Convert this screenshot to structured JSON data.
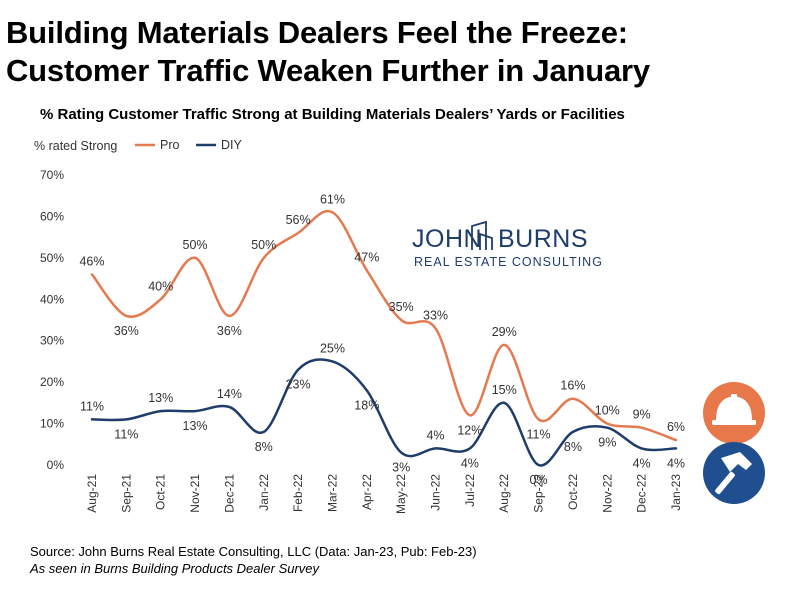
{
  "headline": {
    "line1": "Building Materials Dealers Feel the Freeze:",
    "line2": "Customer Traffic Weaken Further in January"
  },
  "brand": {
    "word1": "JOHN",
    "word2": "BURNS",
    "tagline": "REAL ESTATE CONSULTING"
  },
  "footer": {
    "source": "Source: John Burns Real Estate Consulting, LLC (Data: Jan-23, Pub: Feb-23)",
    "note": "As seen in Burns Building Products Dealer Survey"
  },
  "icons": {
    "pro": "hard-hat-icon",
    "diy": "hammer-icon"
  },
  "colors": {
    "pro": "#e5794f",
    "diy": "#1f3d6b",
    "pro_badge": "#e8784a",
    "diy_badge": "#1f4f8f"
  },
  "chart_data": {
    "type": "line",
    "title": "% Rating Customer Traffic Strong at Building Materials Dealers’ Yards or Facilities",
    "ylabel": "% rated Strong",
    "xlabel": "",
    "ylim": [
      0,
      70
    ],
    "yticks": [
      0,
      10,
      20,
      30,
      40,
      50,
      60,
      70
    ],
    "ytick_labels": [
      "0%",
      "10%",
      "20%",
      "30%",
      "40%",
      "50%",
      "60%",
      "70%"
    ],
    "grid": false,
    "legend": "top-left",
    "categories": [
      "Aug-21",
      "Sep-21",
      "Oct-21",
      "Nov-21",
      "Dec-21",
      "Jan-22",
      "Feb-22",
      "Mar-22",
      "Apr-22",
      "May-22",
      "Jun-22",
      "Jul-22",
      "Aug-22",
      "Sep-22",
      "Oct-22",
      "Nov-22",
      "Dec-22",
      "Jan-23"
    ],
    "series": [
      {
        "name": "Pro",
        "values": [
          46,
          36,
          40,
          50,
          36,
          50,
          56,
          61,
          47,
          35,
          33,
          12,
          29,
          11,
          16,
          10,
          9,
          6
        ]
      },
      {
        "name": "DIY",
        "values": [
          11,
          11,
          13,
          13,
          14,
          8,
          23,
          25,
          18,
          3,
          4,
          4,
          15,
          0,
          8,
          9,
          4,
          4
        ]
      }
    ]
  }
}
